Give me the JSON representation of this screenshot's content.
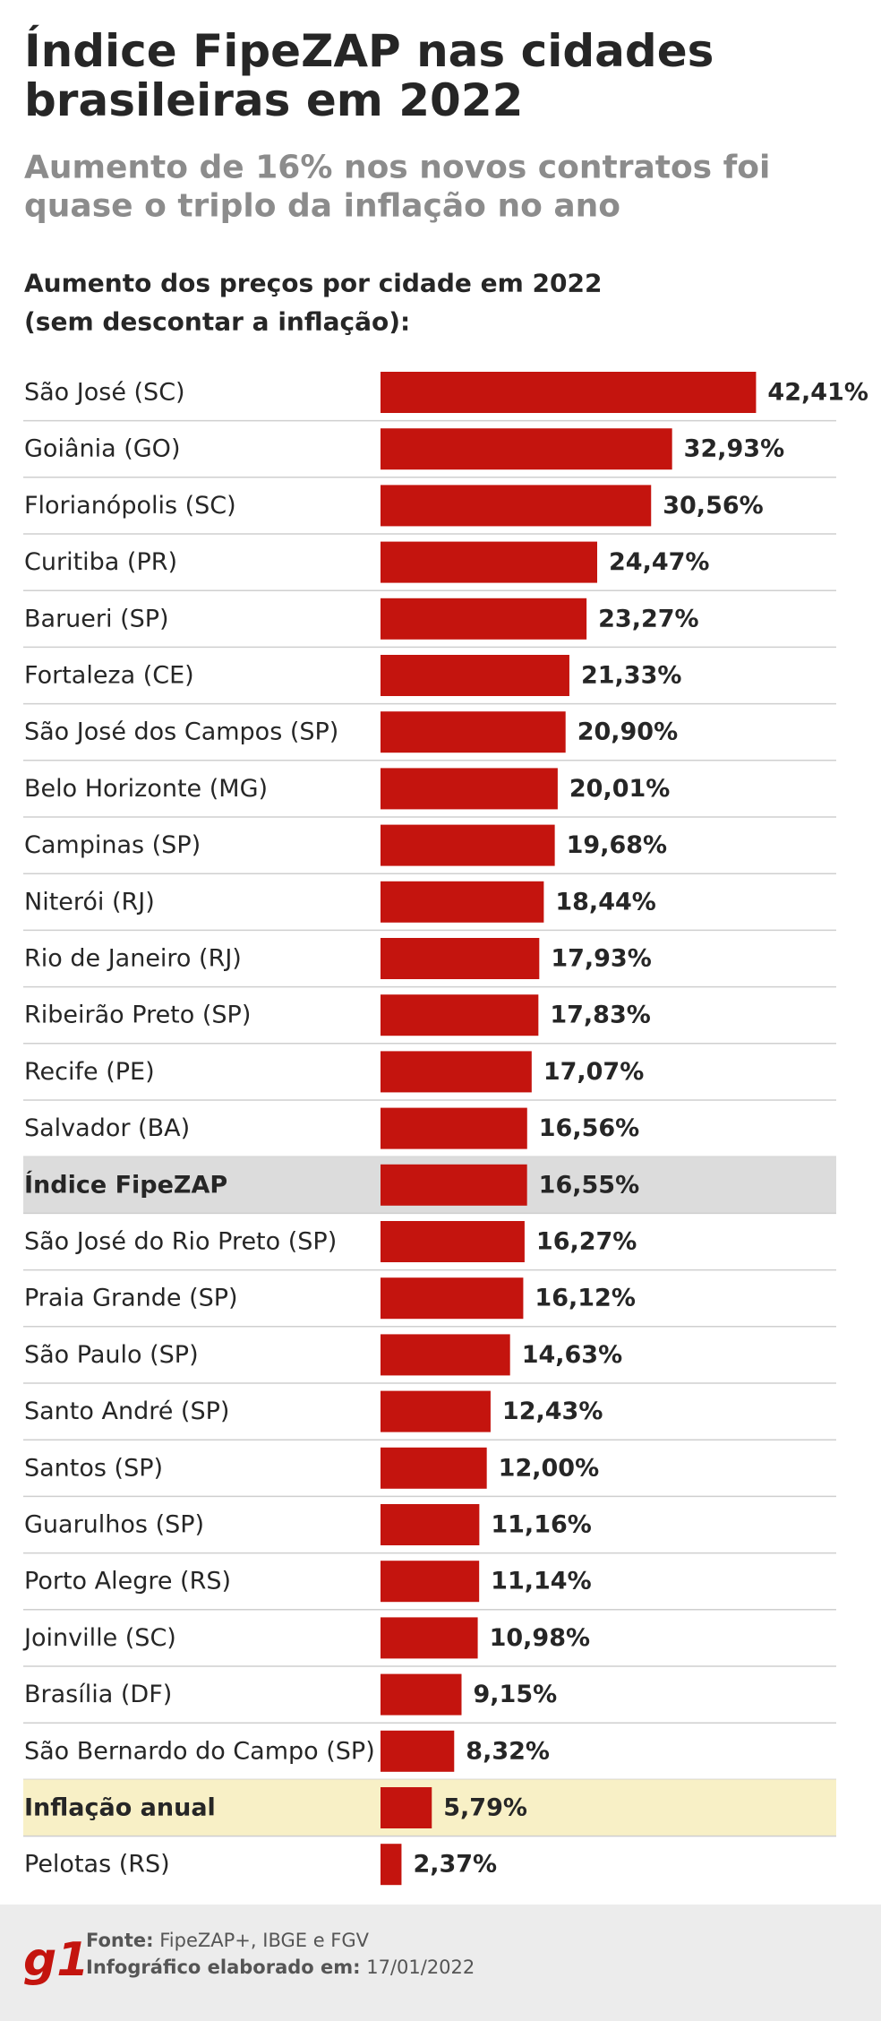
{
  "chart_data": {
    "type": "bar",
    "orientation": "horizontal",
    "title": [
      "Índice FipeZAP nas cidades",
      "brasileiras em 2022"
    ],
    "subtitle": [
      "Aumento de 16% nos novos contratos foi",
      "quase o triplo da inflação no ano"
    ],
    "heading": [
      "Aumento dos preços por cidade em 2022",
      "(sem descontar a inflação):"
    ],
    "color": "#c4140e",
    "categories": [
      "São José (SC)",
      "Goiânia (GO)",
      "Florianópolis (SC)",
      "Curitiba (PR)",
      "Barueri (SP)",
      "Fortaleza (CE)",
      "São José dos Campos (SP)",
      "Belo Horizonte (MG)",
      "Campinas (SP)",
      "Niterói (RJ)",
      "Rio de Janeiro (RJ)",
      "Ribeirão Preto (SP)",
      "Recife (PE)",
      "Salvador (BA)",
      "Índice FipeZAP",
      "São José do Rio Preto (SP)",
      "Praia Grande (SP)",
      "São Paulo (SP)",
      "Santo André (SP)",
      "Santos (SP)",
      "Guarulhos (SP)",
      "Porto Alegre (RS)",
      "Joinville (SC)",
      "Brasília (DF)",
      "São Bernardo do Campo (SP)",
      "Inflação anual",
      "Pelotas (RS)"
    ],
    "values": [
      42.41,
      32.93,
      30.56,
      24.47,
      23.27,
      21.33,
      20.9,
      20.01,
      19.68,
      18.44,
      17.93,
      17.83,
      17.07,
      16.56,
      16.55,
      16.27,
      16.12,
      14.63,
      12.43,
      12.0,
      11.16,
      11.14,
      10.98,
      9.15,
      8.32,
      5.79,
      2.37
    ],
    "value_labels": [
      "42,41%",
      "32,93%",
      "30,56%",
      "24,47%",
      "23,27%",
      "21,33%",
      "20,90%",
      "20,01%",
      "19,68%",
      "18,44%",
      "17,93%",
      "17,83%",
      "17,07%",
      "16,56%",
      "16,55%",
      "16,27%",
      "16,12%",
      "14,63%",
      "12,43%",
      "12,00%",
      "11,16%",
      "11,14%",
      "10,98%",
      "9,15%",
      "8,32%",
      "5,79%",
      "2,37%"
    ],
    "highlight_rows": [
      {
        "index": 14,
        "color": "#dcdcdc"
      },
      {
        "index": 25,
        "color": "#f8f0c6"
      }
    ]
  },
  "footer": {
    "logo": "g1",
    "source_label": "Fonte:",
    "source": "FipeZAP+, IBGE e FGV",
    "date_label": "Infográfico elaborado em:",
    "date": "17/01/2022"
  }
}
